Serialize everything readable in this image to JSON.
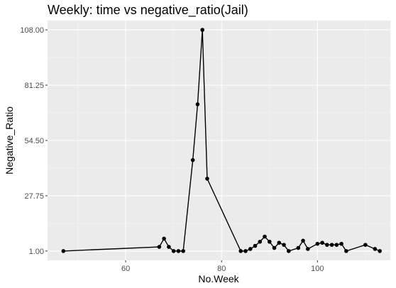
{
  "chart_data": {
    "type": "line",
    "title": "Weekly: time vs negative_ratio(Jail)",
    "xlabel": "No.Week",
    "ylabel": "Negative_Ratio",
    "xlim": [
      43.7,
      115.2
    ],
    "ylim": [
      -3.5,
      112.5
    ],
    "x_ticks": [
      60,
      80,
      100
    ],
    "x_tick_labels": [
      "60",
      "80",
      "100"
    ],
    "y_ticks": [
      1.0,
      27.75,
      54.5,
      81.25,
      108.0
    ],
    "y_tick_labels": [
      "1.00",
      "27.75",
      "54.50",
      "81.25",
      "108.00"
    ],
    "grid": true,
    "points_shown": true,
    "x": [
      47,
      67,
      68,
      69,
      70,
      71,
      72,
      74,
      75,
      76,
      77,
      84,
      85,
      86,
      87,
      88,
      89,
      90,
      91,
      92,
      93,
      94,
      96,
      97,
      98,
      100,
      101,
      102,
      103,
      104,
      105,
      106,
      110,
      112,
      113
    ],
    "y": [
      1.0,
      3.0,
      7.0,
      3.0,
      1.0,
      1.0,
      1.0,
      45.0,
      72.0,
      108.0,
      36.0,
      1.0,
      1.0,
      2.0,
      3.5,
      5.5,
      8.0,
      5.5,
      2.5,
      5.0,
      4.0,
      1.0,
      2.5,
      6.0,
      2.0,
      4.5,
      5.0,
      4.0,
      4.0,
      4.0,
      4.5,
      1.0,
      4.0,
      2.0,
      1.0
    ]
  },
  "colors": {
    "panel": "#ebebeb",
    "grid_major": "#ffffff",
    "grid_minor": "#f5f5f5",
    "line": "#000000",
    "point": "#000000",
    "tick_text": "#4d4d4d"
  }
}
